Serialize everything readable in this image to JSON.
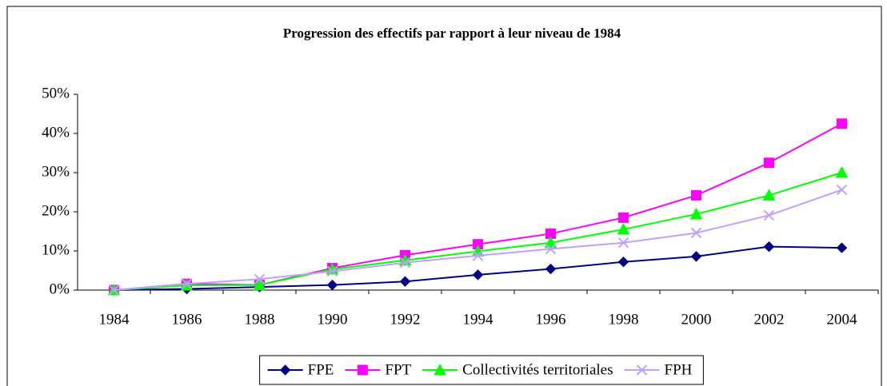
{
  "chart_data": {
    "type": "line",
    "title": "Progression des effectifs par rapport à leur niveau de 1984",
    "categories": [
      "1984",
      "1986",
      "1988",
      "1990",
      "1992",
      "1994",
      "1996",
      "1998",
      "2000",
      "2002",
      "2004"
    ],
    "series": [
      {
        "name": "FPE",
        "color": "#000080",
        "marker": "diamond",
        "values": [
          0,
          0.3,
          0.8,
          1.3,
          2.2,
          3.9,
          5.4,
          7.2,
          8.6,
          11.1,
          10.8
        ]
      },
      {
        "name": "FPT",
        "color": "#ff00ff",
        "marker": "square",
        "values": [
          0,
          1.6,
          1.3,
          5.6,
          8.9,
          11.7,
          14.4,
          18.5,
          24.2,
          32.5,
          42.5
        ]
      },
      {
        "name": "Collectivités territoriales",
        "color": "#00ff00",
        "marker": "triangle",
        "values": [
          0,
          1.2,
          1.3,
          5.3,
          7.6,
          9.9,
          12.1,
          15.5,
          19.4,
          24.2,
          30.0
        ]
      },
      {
        "name": "FPH",
        "color": "#c0a0ff",
        "marker": "x",
        "values": [
          0,
          1.6,
          2.8,
          4.8,
          7.0,
          8.8,
          10.5,
          12.1,
          14.6,
          19.1,
          25.6
        ]
      }
    ],
    "ylim": [
      0,
      50
    ],
    "yticks": [
      {
        "value": 0,
        "label": "0%"
      },
      {
        "value": 10,
        "label": "10%"
      },
      {
        "value": 20,
        "label": "20%"
      },
      {
        "value": 30,
        "label": "30%"
      },
      {
        "value": 40,
        "label": "40%"
      },
      {
        "value": 50,
        "label": "50%"
      }
    ],
    "grid": false,
    "legend": "bottom"
  }
}
